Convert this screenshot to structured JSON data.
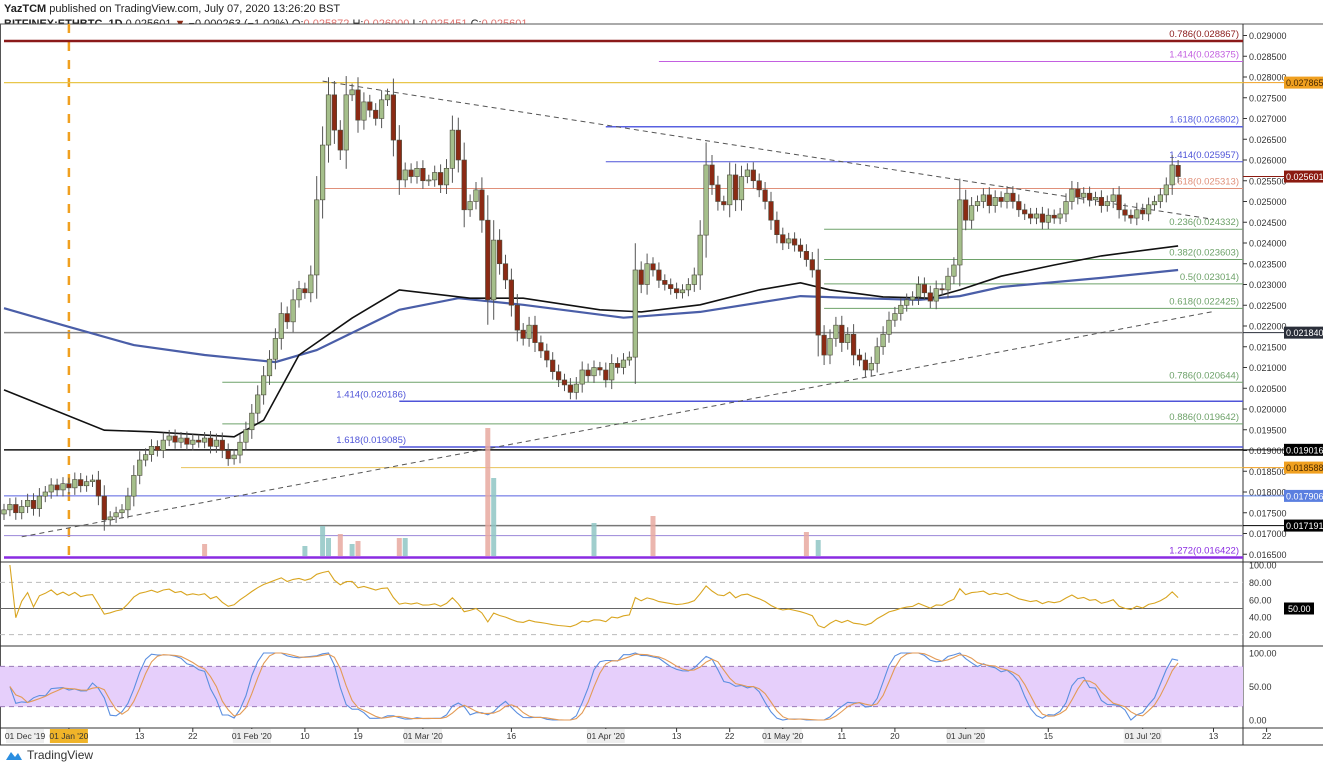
{
  "header": {
    "publisher": "YazTCM",
    "published_text": "published on TradingView.com, July 07, 2020 13:26:20 BST",
    "symbol": "BITFINEX:ETHBTC, 1D",
    "last": "0.025601",
    "change": "−0.000263 (−1.02%)",
    "o_label": "O:",
    "o": "0.025872",
    "h_label": "H:",
    "h": "0.026000",
    "l_label": "L:",
    "l": "0.025451",
    "c_label": "C:",
    "c": "0.025601"
  },
  "footer": {
    "brand": "TradingView"
  },
  "chart_data": {
    "type": "candlestick",
    "scale": "linear",
    "colors": {
      "up": "#a5bf8b",
      "down": "#8b2a14",
      "ma_fast": "#111111",
      "ma_slow": "#4a5ea8",
      "rsi": "#d9a520",
      "stoch_k": "#5b8fe0",
      "stoch_d": "#e39a55",
      "stoch_band": "#e6cffb"
    },
    "first_date": "2019-12-21",
    "last_candle": {
      "open": 0.025872,
      "high": 0.026,
      "low": 0.025451,
      "close": 0.025601
    },
    "closes": [
      0.01757,
      0.0177,
      0.0175,
      0.01765,
      0.0178,
      0.0176,
      0.0179,
      0.018,
      0.01817,
      0.01805,
      0.0182,
      0.0181,
      0.0183,
      0.01815,
      0.01825,
      0.01829,
      0.0179,
      0.01733,
      0.0174,
      0.0175,
      0.01757,
      0.0179,
      0.0184,
      0.01877,
      0.0189,
      0.0191,
      0.019,
      0.01925,
      0.01935,
      0.0192,
      0.0193,
      0.01915,
      0.01925,
      0.0192,
      0.0193,
      0.0191,
      0.01925,
      0.019,
      0.0188,
      0.01889,
      0.0192,
      0.0195,
      0.0199,
      0.02034,
      0.0208,
      0.0212,
      0.0217,
      0.0223,
      0.0221,
      0.02263,
      0.0229,
      0.0228,
      0.02323,
      0.02504,
      0.02636,
      0.02757,
      0.02672,
      0.02624,
      0.02757,
      0.02769,
      0.02696,
      0.0274,
      0.0272,
      0.027,
      0.02745,
      0.02757,
      0.02648,
      0.02552,
      0.02576,
      0.0256,
      0.0258,
      0.0255,
      0.02552,
      0.0257,
      0.0254,
      0.0258,
      0.02672,
      0.026,
      0.0248,
      0.025,
      0.02528,
      0.02455,
      0.02263,
      0.02407,
      0.0235,
      0.02311,
      0.0225,
      0.0219,
      0.0217,
      0.02202,
      0.0216,
      0.0214,
      0.02118,
      0.0209,
      0.0207,
      0.02058,
      0.0204,
      0.0206,
      0.02094,
      0.0208,
      0.021,
      0.02094,
      0.0207,
      0.0211,
      0.021,
      0.02118,
      0.02125,
      0.02335,
      0.023,
      0.0235,
      0.02335,
      0.0231,
      0.023,
      0.0229,
      0.0228,
      0.02287,
      0.023,
      0.02323,
      0.02419,
      0.02588,
      0.0254,
      0.025,
      0.02492,
      0.02564,
      0.02504,
      0.0256,
      0.02576,
      0.0255,
      0.02528,
      0.025,
      0.02455,
      0.0242,
      0.024,
      0.0241,
      0.02395,
      0.0238,
      0.0236,
      0.02335,
      0.02178,
      0.0213,
      0.0217,
      0.02202,
      0.0216,
      0.0218,
      0.0213,
      0.02118,
      0.02094,
      0.0211,
      0.0215,
      0.0218,
      0.02214,
      0.0223,
      0.0225,
      0.02263,
      0.0227,
      0.023,
      0.0228,
      0.0226,
      0.0229,
      0.02287,
      0.0232,
      0.02347,
      0.02504,
      0.02455,
      0.0249,
      0.025,
      0.02516,
      0.0249,
      0.0251,
      0.025,
      0.0252,
      0.025,
      0.0248,
      0.0247,
      0.0246,
      0.0247,
      0.0245,
      0.02467,
      0.0246,
      0.0247,
      0.025,
      0.0253,
      0.0251,
      0.0252,
      0.02504,
      0.0251,
      0.0249,
      0.025,
      0.02516,
      0.0248,
      0.02467,
      0.0246,
      0.0248,
      0.0247,
      0.02492,
      0.025,
      0.02516,
      0.0254,
      0.02588,
      0.0256
    ],
    "volume_spikes": [
      [
        "2020-01-24",
        12,
        "down"
      ],
      [
        "2020-02-10",
        10,
        "up"
      ],
      [
        "2020-02-13",
        30,
        "up"
      ],
      [
        "2020-02-14",
        18,
        "up"
      ],
      [
        "2020-02-16",
        22,
        "down"
      ],
      [
        "2020-02-18",
        12,
        "up"
      ],
      [
        "2020-02-19",
        15,
        "down"
      ],
      [
        "2020-02-26",
        18,
        "down"
      ],
      [
        "2020-02-27",
        18,
        "up"
      ],
      [
        "2020-03-12",
        128,
        "down"
      ],
      [
        "2020-03-13",
        78,
        "up"
      ],
      [
        "2020-03-30",
        33,
        "up"
      ],
      [
        "2020-04-09",
        40,
        "down"
      ],
      [
        "2020-05-05",
        24,
        "down"
      ],
      [
        "2020-05-07",
        16,
        "up"
      ]
    ],
    "ma_fast": [
      [
        "2019-12-21",
        0.02046
      ],
      [
        "2020-01-07",
        0.01949
      ],
      [
        "2020-01-15",
        0.01945
      ],
      [
        "2020-01-29",
        0.01933
      ],
      [
        "2020-02-03",
        0.01973
      ],
      [
        "2020-02-09",
        0.0213
      ],
      [
        "2020-02-18",
        0.02219
      ],
      [
        "2020-02-26",
        0.02287
      ],
      [
        "2020-03-09",
        0.02267
      ],
      [
        "2020-03-18",
        0.02267
      ],
      [
        "2020-03-31",
        0.02239
      ],
      [
        "2020-04-07",
        0.02234
      ],
      [
        "2020-04-17",
        0.02251
      ],
      [
        "2020-04-27",
        0.02287
      ],
      [
        "2020-05-04",
        0.02304
      ],
      [
        "2020-05-09",
        0.02287
      ],
      [
        "2020-05-18",
        0.0227
      ],
      [
        "2020-05-26",
        0.02267
      ],
      [
        "2020-05-31",
        0.02287
      ],
      [
        "2020-06-07",
        0.0232
      ],
      [
        "2020-06-16",
        0.02347
      ],
      [
        "2020-06-24",
        0.02369
      ],
      [
        "2020-07-07",
        0.02393
      ]
    ],
    "ma_slow": [
      [
        "2019-12-21",
        0.02243
      ],
      [
        "2019-12-31",
        0.02202
      ],
      [
        "2020-01-12",
        0.02154
      ],
      [
        "2020-01-24",
        0.0213
      ],
      [
        "2020-02-05",
        0.02113
      ],
      [
        "2020-02-12",
        0.02142
      ],
      [
        "2020-02-26",
        0.02239
      ],
      [
        "2020-03-07",
        0.02267
      ],
      [
        "2020-03-18",
        0.02251
      ],
      [
        "2020-04-04",
        0.0222
      ],
      [
        "2020-04-17",
        0.02234
      ],
      [
        "2020-05-04",
        0.02272
      ],
      [
        "2020-05-14",
        0.02267
      ],
      [
        "2020-05-24",
        0.02263
      ],
      [
        "2020-05-31",
        0.02272
      ],
      [
        "2020-06-07",
        0.02294
      ],
      [
        "2020-06-24",
        0.02316
      ],
      [
        "2020-07-07",
        0.02335
      ]
    ],
    "trendlines": [
      {
        "from": [
          "2020-02-13",
          0.0279
        ],
        "to": [
          "2020-07-13",
          0.02457
        ],
        "style": "dashed"
      },
      {
        "from": [
          "2019-12-24",
          0.01692
        ],
        "to": [
          "2020-07-13",
          0.02235
        ],
        "style": "dashed"
      }
    ],
    "levels": [
      {
        "label": "0.786(0.028867)",
        "price": 0.028867,
        "color": "#8b1a1a",
        "from": "2019-12-21",
        "width": 2.5,
        "label_side": "right"
      },
      {
        "label": "1.414(0.028375)",
        "price": 0.028375,
        "color": "#c35fe0",
        "from": "2020-04-10",
        "width": 1,
        "label_side": "right"
      },
      {
        "label": "",
        "price": 0.027865,
        "color": "#e8c64a",
        "from": "2019-12-21",
        "width": 1.2
      },
      {
        "label": "1.618(0.026802)",
        "price": 0.026802,
        "color": "#5860e0",
        "from": "2020-04-01",
        "width": 1.5,
        "label_side": "right"
      },
      {
        "label": "1.414(0.025957)",
        "price": 0.025957,
        "color": "#4f54d8",
        "from": "2020-04-01",
        "width": 1,
        "label_side": "right"
      },
      {
        "label": "0.618(0.025313)",
        "price": 0.025313,
        "color": "#e0907a",
        "from": "2020-02-13",
        "width": 1,
        "label_side": "right"
      },
      {
        "label": "0.236(0.024332)",
        "price": 0.024332,
        "color": "#6ea26a",
        "from": "2020-05-08",
        "width": 1,
        "label_side": "right"
      },
      {
        "label": "0.382(0.023603)",
        "price": 0.023603,
        "color": "#6ea26a",
        "from": "2020-05-08",
        "width": 1,
        "label_side": "right"
      },
      {
        "label": "0.5(0.023014)",
        "price": 0.023014,
        "color": "#6ea26a",
        "from": "2020-05-08",
        "width": 1,
        "label_side": "right"
      },
      {
        "label": "0.618(0.022425)",
        "price": 0.022425,
        "color": "#6ea26a",
        "from": "2020-05-08",
        "width": 1,
        "label_side": "right"
      },
      {
        "label": "",
        "price": 0.02184,
        "color": "#888888",
        "from": "2019-12-21",
        "width": 1.5
      },
      {
        "label": "0.786(0.020644)",
        "price": 0.020644,
        "color": "#6ea26a",
        "from": "2020-01-27",
        "width": 1,
        "label_side": "right"
      },
      {
        "label": "1.414(0.020186)",
        "price": 0.020186,
        "color": "#4f54d8",
        "from": "2020-02-26",
        "width": 1.5,
        "label_side": "left"
      },
      {
        "label": "0.886(0.019642)",
        "price": 0.019642,
        "color": "#6ea26a",
        "from": "2020-01-27",
        "width": 1,
        "label_side": "right"
      },
      {
        "label": "1.618(0.019085)",
        "price": 0.019085,
        "color": "#4f54d8",
        "from": "2020-02-26",
        "width": 1.5,
        "label_side": "left"
      },
      {
        "label": "",
        "price": 0.019016,
        "color": "#111111",
        "from": "2019-12-21",
        "width": 1.5
      },
      {
        "label": "",
        "price": 0.018588,
        "color": "#e8c25a",
        "from": "2020-01-20",
        "width": 1
      },
      {
        "label": "",
        "price": 0.017906,
        "color": "#5860e0",
        "from": "2019-12-21",
        "width": 1
      },
      {
        "label": "",
        "price": 0.017191,
        "color": "#777777",
        "from": "2019-12-21",
        "width": 1.5
      },
      {
        "label": "",
        "price": 0.01695,
        "color": "#9a86d8",
        "from": "2019-12-21",
        "width": 1
      },
      {
        "label": "1.272(0.016422)",
        "price": 0.016422,
        "color": "#8a2be2",
        "from": "2019-12-21",
        "width": 2.5,
        "label_side": "right"
      }
    ],
    "price_ticks": [
      "0.029000",
      "0.028500",
      "0.028000",
      "0.027500",
      "0.027000",
      "0.026500",
      "0.026000",
      "0.025500",
      "0.025000",
      "0.024500",
      "0.024000",
      "0.023500",
      "0.023000",
      "0.022500",
      "0.022000",
      "0.021500",
      "0.021000",
      "0.020500",
      "0.020000",
      "0.019500",
      "0.019000",
      "0.018500",
      "0.018000",
      "0.017500",
      "0.017000",
      "0.016500"
    ],
    "price_tags": [
      {
        "text": "0.027865",
        "bg": "#f0a020",
        "fg": "#4a2a00"
      },
      {
        "text": "0.025601",
        "bg": "#8b1a10",
        "fg": "#ffffff"
      },
      {
        "text": "0.021840",
        "bg": "#2a2e39",
        "fg": "#ffffff"
      },
      {
        "text": "0.019016",
        "bg": "#000000",
        "fg": "#ffffff"
      },
      {
        "text": "0.018588",
        "bg": "#f0a020",
        "fg": "#4a2a00"
      },
      {
        "text": "0.017906",
        "bg": "#5b7fe0",
        "fg": "#ffffff"
      },
      {
        "text": "0.017191",
        "bg": "#000000",
        "fg": "#ffffff"
      }
    ],
    "rsi_ticks": [
      "100.00",
      "80.00",
      "60.00",
      "40.00",
      "20.00"
    ],
    "rsi_tag": "50.00",
    "stoch_ticks": [
      "100.00",
      "50.00",
      "0.00"
    ],
    "x_ticks": [
      {
        "label": "01 Dec '19",
        "date": null
      },
      {
        "label": "01 Jan '20",
        "date": "2020-01-01",
        "highlight": true
      },
      {
        "label": "13",
        "date": "2020-01-13"
      },
      {
        "label": "22",
        "date": "2020-01-22"
      },
      {
        "label": "01 Feb '20",
        "date": "2020-02-01"
      },
      {
        "label": "10",
        "date": "2020-02-10"
      },
      {
        "label": "19",
        "date": "2020-02-19"
      },
      {
        "label": "01 Mar '20",
        "date": "2020-03-01"
      },
      {
        "label": "16",
        "date": "2020-03-16"
      },
      {
        "label": "01 Apr '20",
        "date": "2020-04-01"
      },
      {
        "label": "13",
        "date": "2020-04-13"
      },
      {
        "label": "22",
        "date": "2020-04-22"
      },
      {
        "label": "01 May '20",
        "date": "2020-05-01"
      },
      {
        "label": "11",
        "date": "2020-05-11"
      },
      {
        "label": "20",
        "date": "2020-05-20"
      },
      {
        "label": "01 Jun '20",
        "date": "2020-06-01"
      },
      {
        "label": "15",
        "date": "2020-06-15"
      },
      {
        "label": "01 Jul '20",
        "date": "2020-07-01"
      },
      {
        "label": "13",
        "date": "2020-07-13"
      },
      {
        "label": "22",
        "date": "2020-07-22"
      }
    ],
    "marker_date": "2020-01-01"
  }
}
